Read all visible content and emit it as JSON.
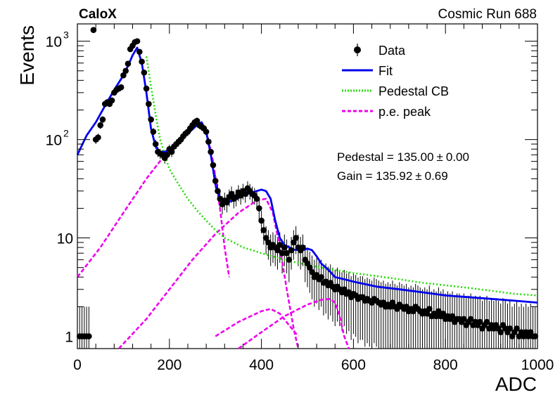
{
  "chart_data": {
    "type": "scatter",
    "title_left": "CaloX",
    "title_right": "Cosmic Run 688",
    "xlabel": "ADC",
    "ylabel": "Events",
    "xlim": [
      0,
      1000
    ],
    "ylim": [
      0.75,
      1500
    ],
    "y_scale": "log",
    "grid": false,
    "x_ticks": [
      0,
      200,
      400,
      600,
      800,
      1000
    ],
    "y_ticks": [
      {
        "value": 1,
        "label": "1"
      },
      {
        "value": 10,
        "label": "10"
      },
      {
        "value": 100,
        "label": "10",
        "exp": "2"
      },
      {
        "value": 1000,
        "label": "10",
        "exp": "3"
      }
    ],
    "legend_position": "top-right",
    "legend": [
      {
        "name": "Data",
        "kind": "marker",
        "color": "#000000"
      },
      {
        "name": "Fit",
        "kind": "solid",
        "color": "#0000ee"
      },
      {
        "name": "Pedestal CB",
        "kind": "dotted",
        "color": "#22dd00"
      },
      {
        "name": "p.e. peak",
        "kind": "dashed",
        "color": "#ee00ee"
      }
    ],
    "annotations": [
      {
        "label": "Pedestal = 135.00",
        "pm": "±",
        "err": "0.00"
      },
      {
        "label": "Gain = 135.92",
        "pm": "±",
        "err": "0.69"
      }
    ],
    "fit_params": {
      "pedestal": 135.0,
      "pedestal_err": 0.0,
      "gain": 135.92,
      "gain_err": 0.69
    },
    "data_points": [
      [
        5,
        1.0
      ],
      [
        10,
        1.0
      ],
      [
        15,
        1.0
      ],
      [
        20,
        1.0
      ],
      [
        25,
        1.0
      ],
      [
        35,
        1300
      ],
      [
        40,
        100
      ],
      [
        45,
        105
      ],
      [
        50,
        140
      ],
      [
        55,
        160
      ],
      [
        60,
        230
      ],
      [
        65,
        240
      ],
      [
        70,
        230
      ],
      [
        75,
        250
      ],
      [
        80,
        300
      ],
      [
        85,
        320
      ],
      [
        90,
        330
      ],
      [
        95,
        340
      ],
      [
        100,
        450
      ],
      [
        105,
        500
      ],
      [
        110,
        590
      ],
      [
        115,
        830
      ],
      [
        120,
        900
      ],
      [
        125,
        980
      ],
      [
        130,
        1000
      ],
      [
        135,
        780
      ],
      [
        140,
        620
      ],
      [
        145,
        480
      ],
      [
        150,
        330
      ],
      [
        155,
        230
      ],
      [
        160,
        160
      ],
      [
        165,
        120
      ],
      [
        170,
        90
      ],
      [
        175,
        75
      ],
      [
        180,
        72
      ],
      [
        185,
        70
      ],
      [
        190,
        65
      ],
      [
        195,
        70
      ],
      [
        200,
        80
      ],
      [
        205,
        75
      ],
      [
        210,
        85
      ],
      [
        215,
        90
      ],
      [
        220,
        95
      ],
      [
        225,
        100
      ],
      [
        230,
        108
      ],
      [
        235,
        115
      ],
      [
        240,
        120
      ],
      [
        245,
        130
      ],
      [
        250,
        140
      ],
      [
        255,
        150
      ],
      [
        260,
        155
      ],
      [
        265,
        140
      ],
      [
        270,
        135
      ],
      [
        275,
        130
      ],
      [
        280,
        120
      ],
      [
        285,
        95
      ],
      [
        290,
        75
      ],
      [
        295,
        55
      ],
      [
        300,
        38
      ],
      [
        305,
        30
      ],
      [
        310,
        25
      ],
      [
        315,
        22
      ],
      [
        320,
        24
      ],
      [
        325,
        23
      ],
      [
        330,
        26
      ],
      [
        335,
        28
      ],
      [
        340,
        25
      ],
      [
        345,
        26
      ],
      [
        350,
        29
      ],
      [
        355,
        27
      ],
      [
        360,
        30
      ],
      [
        365,
        28
      ],
      [
        370,
        32
      ],
      [
        375,
        30
      ],
      [
        380,
        28
      ],
      [
        385,
        27
      ],
      [
        390,
        25
      ],
      [
        395,
        20
      ],
      [
        400,
        15
      ],
      [
        405,
        12
      ],
      [
        410,
        10
      ],
      [
        415,
        9
      ],
      [
        420,
        8
      ],
      [
        425,
        8.5
      ],
      [
        430,
        8
      ],
      [
        435,
        7.5
      ],
      [
        440,
        8.5
      ],
      [
        445,
        7
      ],
      [
        450,
        8
      ],
      [
        455,
        7
      ],
      [
        460,
        6
      ],
      [
        465,
        7.5
      ],
      [
        470,
        9
      ],
      [
        475,
        10
      ],
      [
        480,
        8
      ],
      [
        485,
        7.5
      ],
      [
        490,
        8
      ],
      [
        495,
        6
      ],
      [
        500,
        5.5
      ],
      [
        505,
        5
      ],
      [
        510,
        4.5
      ],
      [
        515,
        4
      ],
      [
        520,
        4.2
      ],
      [
        525,
        3.8
      ],
      [
        530,
        4
      ],
      [
        535,
        3.5
      ],
      [
        540,
        3.6
      ],
      [
        545,
        3.3
      ],
      [
        550,
        3.5
      ],
      [
        555,
        3.2
      ],
      [
        560,
        3.0
      ],
      [
        565,
        3.2
      ],
      [
        570,
        3.0
      ],
      [
        575,
        2.8
      ],
      [
        580,
        3.0
      ],
      [
        585,
        2.7
      ],
      [
        590,
        2.8
      ],
      [
        595,
        2.5
      ],
      [
        600,
        2.7
      ],
      [
        605,
        2.6
      ],
      [
        610,
        2.4
      ],
      [
        615,
        2.5
      ],
      [
        620,
        2.5
      ],
      [
        625,
        2.3
      ],
      [
        630,
        2.4
      ],
      [
        635,
        2.3
      ],
      [
        640,
        2.2
      ],
      [
        645,
        2.4
      ],
      [
        650,
        2.3
      ],
      [
        655,
        2.2
      ],
      [
        660,
        2.1
      ],
      [
        665,
        2.2
      ],
      [
        670,
        2.0
      ],
      [
        675,
        2.1
      ],
      [
        680,
        2.0
      ],
      [
        685,
        2.2
      ],
      [
        690,
        2.0
      ],
      [
        695,
        1.9
      ],
      [
        700,
        2.1
      ],
      [
        705,
        2.0
      ],
      [
        710,
        1.9
      ],
      [
        715,
        2.0
      ],
      [
        720,
        1.8
      ],
      [
        725,
        1.9
      ],
      [
        730,
        1.8
      ],
      [
        735,
        2.0
      ],
      [
        740,
        1.9
      ],
      [
        745,
        1.8
      ],
      [
        750,
        1.7
      ],
      [
        755,
        1.8
      ],
      [
        760,
        1.7
      ],
      [
        765,
        1.9
      ],
      [
        770,
        1.6
      ],
      [
        775,
        1.7
      ],
      [
        780,
        1.6
      ],
      [
        785,
        1.8
      ],
      [
        790,
        1.6
      ],
      [
        795,
        1.7
      ],
      [
        800,
        1.5
      ],
      [
        805,
        1.6
      ],
      [
        810,
        1.5
      ],
      [
        815,
        1.6
      ],
      [
        820,
        1.4
      ],
      [
        825,
        1.5
      ],
      [
        830,
        1.5
      ],
      [
        835,
        1.4
      ],
      [
        840,
        1.5
      ],
      [
        845,
        1.3
      ],
      [
        850,
        1.4
      ],
      [
        855,
        1.5
      ],
      [
        860,
        1.3
      ],
      [
        865,
        1.4
      ],
      [
        870,
        1.3
      ],
      [
        875,
        1.4
      ],
      [
        880,
        1.2
      ],
      [
        885,
        1.3
      ],
      [
        890,
        1.4
      ],
      [
        895,
        1.2
      ],
      [
        900,
        1.3
      ],
      [
        905,
        1.2
      ],
      [
        910,
        1.3
      ],
      [
        915,
        1.2
      ],
      [
        920,
        1.1
      ],
      [
        925,
        1.3
      ],
      [
        930,
        1.2
      ],
      [
        935,
        1.1
      ],
      [
        940,
        1.2
      ],
      [
        945,
        1.0
      ],
      [
        950,
        1.1
      ],
      [
        955,
        1.2
      ],
      [
        960,
        1.0
      ],
      [
        965,
        1.1
      ],
      [
        970,
        1.0
      ],
      [
        975,
        1.1
      ],
      [
        980,
        1.0
      ],
      [
        985,
        1.1
      ],
      [
        990,
        1.0
      ],
      [
        995,
        1.0
      ]
    ],
    "fit_curve": [
      [
        0,
        70
      ],
      [
        20,
        110
      ],
      [
        40,
        150
      ],
      [
        60,
        220
      ],
      [
        80,
        320
      ],
      [
        100,
        450
      ],
      [
        110,
        560
      ],
      [
        120,
        720
      ],
      [
        130,
        860
      ],
      [
        140,
        600
      ],
      [
        150,
        300
      ],
      [
        160,
        130
      ],
      [
        170,
        85
      ],
      [
        180,
        75
      ],
      [
        190,
        75
      ],
      [
        200,
        80
      ],
      [
        220,
        95
      ],
      [
        240,
        115
      ],
      [
        260,
        140
      ],
      [
        270,
        150
      ],
      [
        280,
        120
      ],
      [
        290,
        70
      ],
      [
        300,
        35
      ],
      [
        310,
        25
      ],
      [
        320,
        23
      ],
      [
        340,
        24
      ],
      [
        360,
        27
      ],
      [
        380,
        29
      ],
      [
        400,
        31
      ],
      [
        410,
        30
      ],
      [
        420,
        25
      ],
      [
        430,
        15
      ],
      [
        440,
        10
      ],
      [
        450,
        8.5
      ],
      [
        470,
        7.6
      ],
      [
        490,
        7.5
      ],
      [
        500,
        7.8
      ],
      [
        510,
        7.5
      ],
      [
        520,
        6.5
      ],
      [
        530,
        5.5
      ],
      [
        540,
        5
      ],
      [
        550,
        4.5
      ],
      [
        560,
        4
      ],
      [
        580,
        3.8
      ],
      [
        600,
        3.6
      ],
      [
        650,
        3.2
      ],
      [
        700,
        3.0
      ],
      [
        750,
        2.8
      ],
      [
        800,
        2.6
      ],
      [
        850,
        2.5
      ],
      [
        900,
        2.4
      ],
      [
        950,
        2.3
      ],
      [
        1000,
        2.2
      ]
    ],
    "pedestal_cb": [
      [
        150,
        700
      ],
      [
        160,
        350
      ],
      [
        170,
        180
      ],
      [
        180,
        100
      ],
      [
        190,
        70
      ],
      [
        200,
        50
      ],
      [
        220,
        35
      ],
      [
        240,
        25
      ],
      [
        260,
        19
      ],
      [
        280,
        15
      ],
      [
        300,
        12
      ],
      [
        320,
        10
      ],
      [
        340,
        9
      ],
      [
        360,
        8
      ],
      [
        380,
        7.5
      ],
      [
        400,
        7
      ],
      [
        450,
        6
      ],
      [
        500,
        5.3
      ],
      [
        550,
        4.8
      ],
      [
        600,
        4.4
      ],
      [
        650,
        4.1
      ],
      [
        700,
        3.8
      ],
      [
        750,
        3.5
      ],
      [
        800,
        3.3
      ],
      [
        850,
        3.1
      ],
      [
        900,
        2.9
      ],
      [
        950,
        2.7
      ],
      [
        1000,
        2.6
      ]
    ],
    "pe_peaks": [
      [
        [
          0,
          4
        ],
        [
          50,
          8
        ],
        [
          100,
          18
        ],
        [
          150,
          40
        ],
        [
          200,
          80
        ],
        [
          240,
          120
        ],
        [
          265,
          145
        ],
        [
          280,
          120
        ],
        [
          295,
          60
        ],
        [
          310,
          20
        ],
        [
          320,
          8
        ],
        [
          330,
          4
        ]
      ],
      [
        [
          90,
          0.75
        ],
        [
          150,
          1.5
        ],
        [
          200,
          3
        ],
        [
          250,
          6
        ],
        [
          300,
          11
        ],
        [
          350,
          18
        ],
        [
          390,
          24
        ],
        [
          410,
          25
        ],
        [
          425,
          18
        ],
        [
          440,
          8
        ],
        [
          455,
          3
        ],
        [
          470,
          1.2
        ],
        [
          480,
          0.75
        ]
      ],
      [
        [
          350,
          0.75
        ],
        [
          400,
          1.1
        ],
        [
          450,
          1.6
        ],
        [
          500,
          2.1
        ],
        [
          530,
          2.35
        ],
        [
          550,
          2.4
        ],
        [
          560,
          2.2
        ],
        [
          570,
          1.6
        ],
        [
          580,
          1.0
        ],
        [
          590,
          0.75
        ]
      ],
      [
        [
          300,
          1.0
        ],
        [
          350,
          1.4
        ],
        [
          400,
          1.8
        ],
        [
          420,
          1.9
        ],
        [
          440,
          1.7
        ],
        [
          460,
          1.3
        ],
        [
          480,
          1.0
        ]
      ]
    ]
  }
}
